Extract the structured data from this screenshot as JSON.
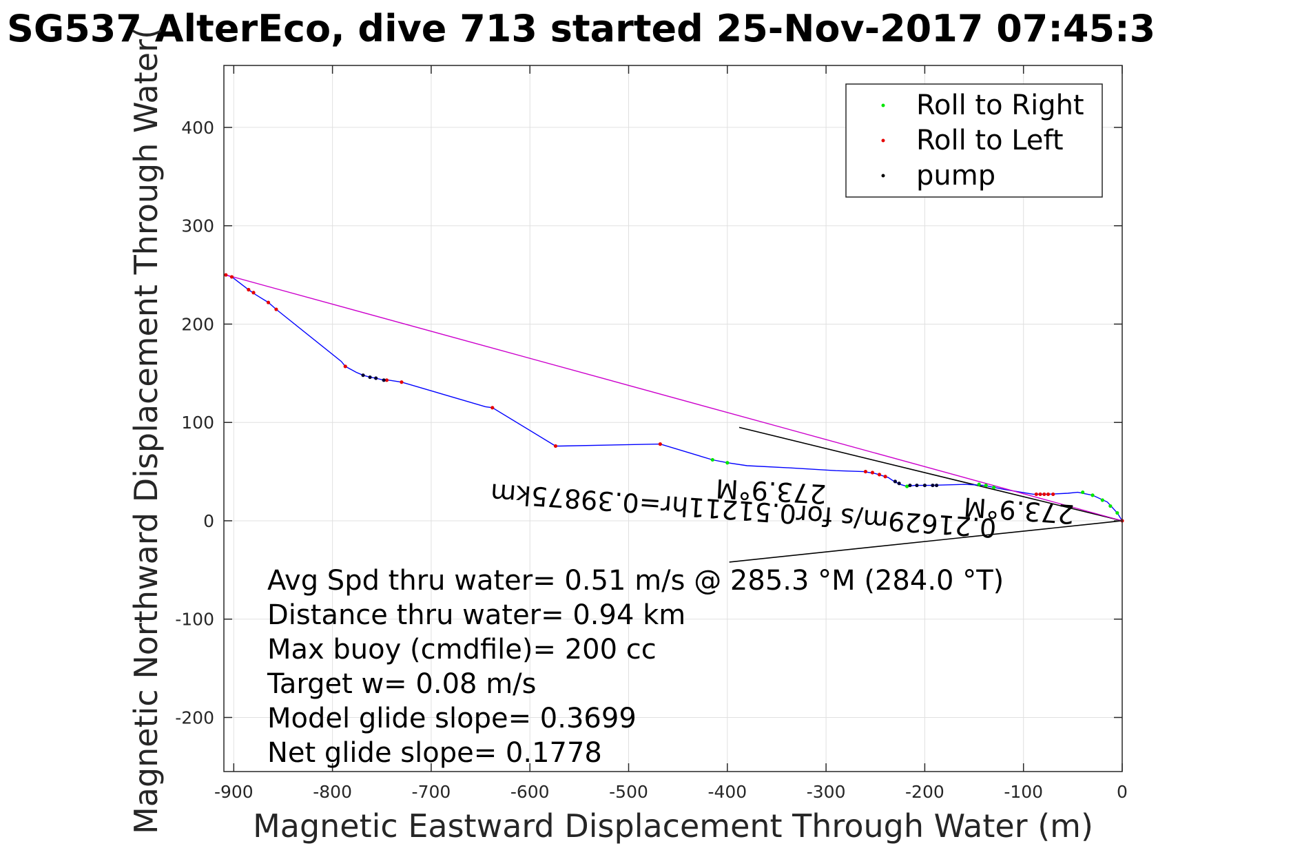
{
  "chart_data": {
    "type": "line",
    "title": "SG537 AlterEco, dive 713 started 25-Nov-2017 07:45:3",
    "xlabel": "Magnetic Eastward Displacement Through Water (m)",
    "ylabel": "Magnetic Northward Displacement Through Water(",
    "xlim": [
      -910,
      0
    ],
    "ylim": [
      -255,
      463
    ],
    "xticks": [
      -900,
      -800,
      -700,
      -600,
      -500,
      -400,
      -300,
      -200,
      -100,
      0
    ],
    "yticks": [
      -200,
      -100,
      0,
      100,
      200,
      300,
      400
    ],
    "xtick_labels": [
      "-900",
      "-800",
      "-700",
      "-600",
      "-500",
      "-400",
      "-300",
      "-200",
      "-100",
      "0"
    ],
    "ytick_labels": [
      "-200",
      "-100",
      "0",
      "100",
      "200",
      "300",
      "400"
    ],
    "grid": true,
    "legend_position": "top-right",
    "legend": [
      {
        "label": "Roll to Right",
        "color": "#00e600"
      },
      {
        "label": "Roll to Left",
        "color": "#e60000"
      },
      {
        "label": "pump",
        "color": "#000000"
      }
    ],
    "series": [
      {
        "kind": "track",
        "color": "#0000ff",
        "points": [
          [
            -908,
            250
          ],
          [
            -902,
            248
          ],
          [
            -885,
            235
          ],
          [
            -878,
            230
          ],
          [
            -865,
            222
          ],
          [
            -857,
            215
          ],
          [
            -791,
            162
          ],
          [
            -787,
            157
          ],
          [
            -776,
            151
          ],
          [
            -769,
            148
          ],
          [
            -762,
            146
          ],
          [
            -756,
            145
          ],
          [
            -748,
            143
          ],
          [
            -743,
            143
          ],
          [
            -730,
            141
          ],
          [
            -645,
            116
          ],
          [
            -638,
            115
          ],
          [
            -574,
            76
          ],
          [
            -570,
            76
          ],
          [
            -468,
            78
          ],
          [
            -415,
            62
          ],
          [
            -400,
            59
          ],
          [
            -380,
            56
          ],
          [
            -340,
            54
          ],
          [
            -290,
            51
          ],
          [
            -262,
            50
          ],
          [
            -250,
            48
          ],
          [
            -237,
            44
          ],
          [
            -231,
            40
          ],
          [
            -225,
            37
          ],
          [
            -218,
            35
          ],
          [
            -210,
            36
          ],
          [
            -195,
            36
          ],
          [
            -160,
            37
          ],
          [
            -140,
            36
          ],
          [
            -120,
            32
          ],
          [
            -90,
            27
          ],
          [
            -75,
            27
          ],
          [
            -55,
            28
          ],
          [
            -45,
            29
          ],
          [
            -30,
            26
          ],
          [
            -15,
            19
          ],
          [
            -5,
            8
          ],
          [
            0,
            0
          ]
        ]
      },
      {
        "kind": "direct-line",
        "color": "#cc00cc",
        "points": [
          [
            0,
            0
          ],
          [
            -908,
            250
          ]
        ]
      }
    ],
    "markers": {
      "roll_right": [
        [
          -415,
          62
        ],
        [
          -400,
          59
        ],
        [
          -218,
          35
        ],
        [
          -145,
          37
        ],
        [
          -138,
          36
        ],
        [
          -130,
          34
        ],
        [
          -40,
          29
        ],
        [
          -30,
          26
        ],
        [
          -20,
          21
        ],
        [
          -12,
          15
        ],
        [
          -5,
          8
        ]
      ],
      "roll_left": [
        [
          -908,
          250
        ],
        [
          -902,
          248
        ],
        [
          -885,
          235
        ],
        [
          -880,
          232
        ],
        [
          -865,
          222
        ],
        [
          -857,
          215
        ],
        [
          -787,
          157
        ],
        [
          -745,
          143
        ],
        [
          -730,
          141
        ],
        [
          -638,
          115
        ],
        [
          -574,
          76
        ],
        [
          -468,
          78
        ],
        [
          -260,
          50
        ],
        [
          -253,
          49
        ],
        [
          -246,
          47
        ],
        [
          -240,
          45
        ],
        [
          -87,
          27
        ],
        [
          -83,
          27
        ],
        [
          -79,
          27
        ],
        [
          -75,
          27
        ],
        [
          -70,
          27
        ],
        [
          0,
          0
        ]
      ],
      "pump": [
        [
          -769,
          148
        ],
        [
          -762,
          146
        ],
        [
          -756,
          145
        ],
        [
          -748,
          143
        ],
        [
          -230,
          40
        ],
        [
          -226,
          38
        ],
        [
          -215,
          36
        ],
        [
          -208,
          36
        ],
        [
          -200,
          36
        ],
        [
          -192,
          36
        ],
        [
          -188,
          36
        ]
      ]
    },
    "reference_lines": [
      {
        "from": [
          -388,
          95
        ],
        "to": [
          0,
          0
        ],
        "color": "#000000"
      },
      {
        "from": [
          -398,
          -42
        ],
        "to": [
          0,
          0
        ],
        "color": "#000000"
      }
    ],
    "annotations_rotated": [
      "0.3987",
      "0.21628m/s for0.51211hr=0.3987",
      "273.9 M",
      "273.9 M"
    ],
    "annotations_rotated_display": [
      "0.21629m/s for0.51211hr=0.39875km",
      "273.9°M",
      "273.9°M"
    ],
    "stats": [
      "Avg Spd thru water=  0.51 m/s @ 285.3 °M (284.0 °T)",
      "Distance thru water=  0.94 km",
      "Max buoy (cmdfile)= 200 cc",
      "Target w= 0.08 m/s",
      "Model glide slope= 0.3699",
      "Net glide slope= 0.1778"
    ]
  }
}
